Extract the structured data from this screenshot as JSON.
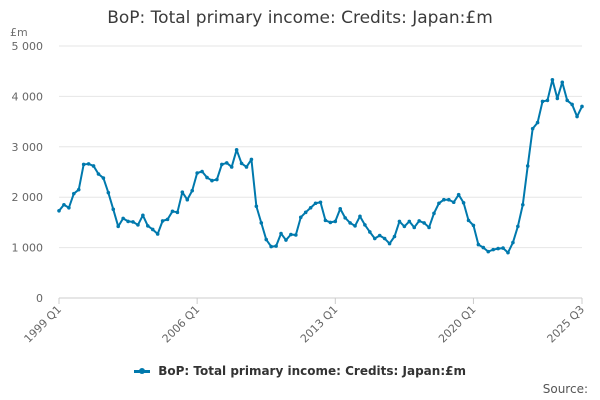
{
  "title": "BoP: Total primary income: Credits: Japan:£m",
  "unit": "£m",
  "source": "Source:",
  "legend_label": "BoP: Total primary income: Credits: Japan:£m",
  "colors": {
    "series": "#0079ad",
    "grid": "#e6e6e6",
    "axis": "#cccccc"
  },
  "chart_data": {
    "type": "line",
    "title": "BoP: Total primary income: Credits: Japan:£m",
    "ylabel": "£m",
    "ylim": [
      0,
      5000
    ],
    "yticks": [
      0,
      1000,
      2000,
      3000,
      4000,
      5000
    ],
    "ytick_labels": [
      "0",
      "1 000",
      "2 000",
      "3 000",
      "4 000",
      "5 000"
    ],
    "xtick_labels": [
      "1999 Q1",
      "2006 Q1",
      "2013 Q1",
      "2020 Q1",
      "2025 Q3"
    ],
    "xtick_indices": [
      0,
      28,
      56,
      84,
      106
    ],
    "grid": true,
    "legend": "bottom",
    "series": [
      {
        "name": "BoP: Total primary income: Credits: Japan:£m",
        "x": [
          "1999 Q1",
          "1999 Q2",
          "1999 Q3",
          "1999 Q4",
          "2000 Q1",
          "2000 Q2",
          "2000 Q3",
          "2000 Q4",
          "2001 Q1",
          "2001 Q2",
          "2001 Q3",
          "2001 Q4",
          "2002 Q1",
          "2002 Q2",
          "2002 Q3",
          "2002 Q4",
          "2003 Q1",
          "2003 Q2",
          "2003 Q3",
          "2003 Q4",
          "2004 Q1",
          "2004 Q2",
          "2004 Q3",
          "2004 Q4",
          "2005 Q1",
          "2005 Q2",
          "2005 Q3",
          "2005 Q4",
          "2006 Q1",
          "2006 Q2",
          "2006 Q3",
          "2006 Q4",
          "2007 Q1",
          "2007 Q2",
          "2007 Q3",
          "2007 Q4",
          "2008 Q1",
          "2008 Q2",
          "2008 Q3",
          "2008 Q4",
          "2009 Q1",
          "2009 Q2",
          "2009 Q3",
          "2009 Q4",
          "2010 Q1",
          "2010 Q2",
          "2010 Q3",
          "2010 Q4",
          "2011 Q1",
          "2011 Q2",
          "2011 Q3",
          "2011 Q4",
          "2012 Q1",
          "2012 Q2",
          "2012 Q3",
          "2012 Q4",
          "2013 Q1",
          "2013 Q2",
          "2013 Q3",
          "2013 Q4",
          "2014 Q1",
          "2014 Q2",
          "2014 Q3",
          "2014 Q4",
          "2015 Q1",
          "2015 Q2",
          "2015 Q3",
          "2015 Q4",
          "2016 Q1",
          "2016 Q2",
          "2016 Q3",
          "2016 Q4",
          "2017 Q1",
          "2017 Q2",
          "2017 Q3",
          "2017 Q4",
          "2018 Q1",
          "2018 Q2",
          "2018 Q3",
          "2018 Q4",
          "2019 Q1",
          "2019 Q2",
          "2019 Q3",
          "2019 Q4",
          "2020 Q1",
          "2020 Q2",
          "2020 Q3",
          "2020 Q4",
          "2021 Q1",
          "2021 Q2",
          "2021 Q3",
          "2021 Q4",
          "2022 Q1",
          "2022 Q2",
          "2022 Q3",
          "2022 Q4",
          "2023 Q1",
          "2023 Q2",
          "2023 Q3",
          "2023 Q4",
          "2024 Q1",
          "2024 Q2",
          "2024 Q3",
          "2024 Q4",
          "2025 Q1",
          "2025 Q2",
          "2025 Q3"
        ],
        "values": [
          1730,
          1850,
          1790,
          2070,
          2150,
          2650,
          2660,
          2620,
          2460,
          2380,
          2090,
          1760,
          1420,
          1580,
          1520,
          1510,
          1450,
          1640,
          1430,
          1360,
          1270,
          1530,
          1560,
          1720,
          1700,
          2100,
          1950,
          2130,
          2480,
          2510,
          2390,
          2330,
          2350,
          2650,
          2680,
          2600,
          2940,
          2670,
          2600,
          2750,
          1820,
          1490,
          1160,
          1020,
          1030,
          1280,
          1150,
          1260,
          1250,
          1600,
          1700,
          1790,
          1880,
          1900,
          1540,
          1500,
          1520,
          1770,
          1590,
          1490,
          1430,
          1620,
          1450,
          1310,
          1180,
          1240,
          1180,
          1080,
          1220,
          1520,
          1420,
          1520,
          1400,
          1530,
          1490,
          1400,
          1680,
          1880,
          1950,
          1950,
          1900,
          2050,
          1890,
          1540,
          1440,
          1060,
          1000,
          920,
          960,
          980,
          990,
          900,
          1100,
          1420,
          1850,
          2620,
          3360,
          3480,
          3900,
          3920,
          4330,
          3960,
          4280,
          3920,
          3840,
          3600,
          3800
        ]
      }
    ]
  }
}
